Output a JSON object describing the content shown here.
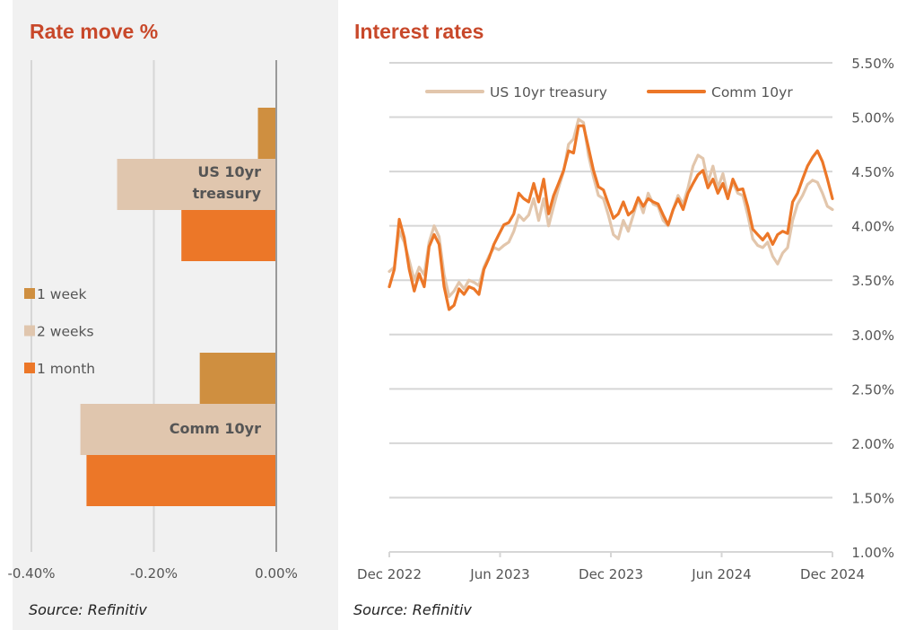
{
  "chart_data": [
    {
      "type": "bar",
      "orientation": "horizontal",
      "title": "Rate move %",
      "categories": [
        "US 10yr treasury",
        "Comm 10yr"
      ],
      "series": [
        {
          "name": "1 week",
          "color": "#cf8f40",
          "values": [
            -0.03,
            -0.125
          ]
        },
        {
          "name": "2 weeks",
          "color": "#e0c6ae",
          "values": [
            -0.26,
            -0.32
          ]
        },
        {
          "name": "1 month",
          "color": "#ec7728",
          "values": [
            -0.155,
            -0.31
          ]
        }
      ],
      "xlim": [
        -0.4,
        0.0
      ],
      "xticks": [
        "-0.40%",
        "-0.20%",
        "0.00%"
      ],
      "xtick_values": [
        -0.4,
        -0.2,
        0.0
      ],
      "grid": true,
      "legend_position": "middle-left",
      "source": "Source: Refinitiv"
    },
    {
      "type": "line",
      "title": "Interest rates",
      "x_start": "Dec 2022",
      "x_end": "Dec 2024",
      "xticks": [
        "Dec 2022",
        "Jun 2023",
        "Dec 2023",
        "Jun 2024",
        "Dec 2024"
      ],
      "ylim": [
        1.0,
        5.5
      ],
      "yticks": [
        "5.50%",
        "5.00%",
        "4.50%",
        "4.00%",
        "3.50%",
        "3.00%",
        "2.50%",
        "2.00%",
        "1.50%",
        "1.00%"
      ],
      "ytick_values": [
        5.5,
        5.0,
        4.5,
        4.0,
        3.5,
        3.0,
        2.5,
        2.0,
        1.5,
        1.0
      ],
      "grid": true,
      "legend_position": "top",
      "series": [
        {
          "name": "US 10yr treasury",
          "color": "#e2c6ac",
          "values": [
            3.58,
            3.62,
            3.95,
            3.85,
            3.68,
            3.5,
            3.62,
            3.55,
            3.85,
            4.0,
            3.9,
            3.55,
            3.35,
            3.4,
            3.48,
            3.42,
            3.5,
            3.48,
            3.45,
            3.62,
            3.72,
            3.8,
            3.78,
            3.82,
            3.85,
            3.95,
            4.1,
            4.05,
            4.1,
            4.25,
            4.05,
            4.25,
            4.0,
            4.18,
            4.35,
            4.5,
            4.75,
            4.8,
            4.98,
            4.95,
            4.65,
            4.45,
            4.28,
            4.25,
            4.1,
            3.92,
            3.88,
            4.05,
            3.95,
            4.1,
            4.25,
            4.12,
            4.3,
            4.2,
            4.18,
            4.05,
            4.0,
            4.15,
            4.28,
            4.2,
            4.35,
            4.55,
            4.65,
            4.62,
            4.4,
            4.55,
            4.35,
            4.48,
            4.28,
            4.4,
            4.3,
            4.28,
            4.1,
            3.88,
            3.82,
            3.8,
            3.85,
            3.72,
            3.65,
            3.75,
            3.8,
            4.05,
            4.2,
            4.28,
            4.38,
            4.42,
            4.4,
            4.3,
            4.18,
            4.15
          ]
        },
        {
          "name": "Comm 10yr",
          "color": "#ec7728",
          "values": [
            3.44,
            3.6,
            4.06,
            3.89,
            3.6,
            3.4,
            3.56,
            3.44,
            3.81,
            3.92,
            3.83,
            3.44,
            3.23,
            3.27,
            3.42,
            3.37,
            3.44,
            3.42,
            3.37,
            3.6,
            3.7,
            3.83,
            3.92,
            4.01,
            4.03,
            4.11,
            4.3,
            4.25,
            4.22,
            4.39,
            4.22,
            4.43,
            4.11,
            4.28,
            4.39,
            4.51,
            4.69,
            4.67,
            4.92,
            4.92,
            4.72,
            4.51,
            4.36,
            4.33,
            4.2,
            4.07,
            4.11,
            4.22,
            4.1,
            4.14,
            4.26,
            4.18,
            4.25,
            4.22,
            4.2,
            4.1,
            4.01,
            4.15,
            4.25,
            4.15,
            4.3,
            4.39,
            4.47,
            4.51,
            4.35,
            4.43,
            4.3,
            4.39,
            4.25,
            4.43,
            4.33,
            4.34,
            4.18,
            3.97,
            3.92,
            3.87,
            3.93,
            3.83,
            3.92,
            3.95,
            3.93,
            4.22,
            4.3,
            4.43,
            4.55,
            4.63,
            4.69,
            4.59,
            4.43,
            4.25
          ]
        }
      ],
      "source": "Source: Refinitiv"
    }
  ]
}
